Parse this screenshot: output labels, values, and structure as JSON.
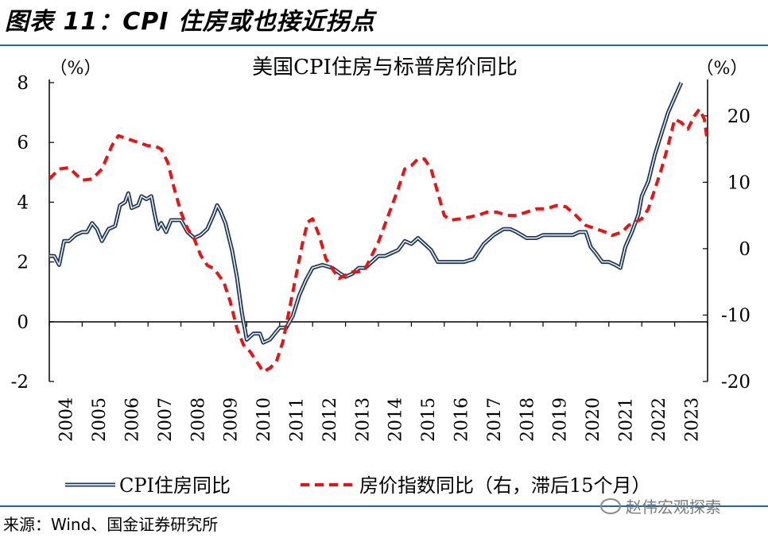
{
  "figure": {
    "label": "图表 11：CPI 住房或也接近拐点",
    "source": "来源：Wind、国金证券研究所",
    "watermark": "赵伟宏观探索"
  },
  "chart_data": {
    "type": "line",
    "title": "美国CPI住房与标普房价同比",
    "left_axis_unit": "（%）",
    "right_axis_unit": "（%）",
    "ylim_left": [
      -2,
      8
    ],
    "ylim_right": [
      -20,
      25
    ],
    "yticks_left": [
      "8",
      "6",
      "4",
      "2",
      "0",
      "-2"
    ],
    "yticks_right": [
      "20",
      "10",
      "0",
      "-10",
      "-20"
    ],
    "x_range": [
      2004,
      2024
    ],
    "x_labels": [
      "2004",
      "2005",
      "2006",
      "2007",
      "2008",
      "2009",
      "2010",
      "2011",
      "2012",
      "2013",
      "2014",
      "2015",
      "2016",
      "2017",
      "2018",
      "2019",
      "2020",
      "2021",
      "2022",
      "2023"
    ],
    "series": [
      {
        "name": "CPI住房同比",
        "axis": "left",
        "color": "#1f3a5f",
        "style": "double",
        "points": [
          [
            2004.0,
            2.2
          ],
          [
            2004.15,
            2.2
          ],
          [
            2004.3,
            1.9
          ],
          [
            2004.45,
            2.7
          ],
          [
            2004.6,
            2.7
          ],
          [
            2004.8,
            2.9
          ],
          [
            2005.0,
            3.0
          ],
          [
            2005.15,
            3.0
          ],
          [
            2005.3,
            3.3
          ],
          [
            2005.45,
            3.1
          ],
          [
            2005.6,
            2.7
          ],
          [
            2005.8,
            3.1
          ],
          [
            2006.0,
            3.2
          ],
          [
            2006.15,
            3.9
          ],
          [
            2006.3,
            4.0
          ],
          [
            2006.4,
            4.3
          ],
          [
            2006.5,
            3.8
          ],
          [
            2006.7,
            3.9
          ],
          [
            2006.8,
            4.2
          ],
          [
            2006.95,
            4.1
          ],
          [
            2007.1,
            4.2
          ],
          [
            2007.2,
            3.6
          ],
          [
            2007.3,
            3.1
          ],
          [
            2007.4,
            3.3
          ],
          [
            2007.55,
            3.0
          ],
          [
            2007.7,
            3.4
          ],
          [
            2008.0,
            3.4
          ],
          [
            2008.2,
            3.0
          ],
          [
            2008.4,
            2.8
          ],
          [
            2008.6,
            2.9
          ],
          [
            2008.8,
            3.1
          ],
          [
            2009.0,
            3.6
          ],
          [
            2009.1,
            3.9
          ],
          [
            2009.2,
            3.7
          ],
          [
            2009.35,
            3.3
          ],
          [
            2009.55,
            2.4
          ],
          [
            2009.7,
            1.5
          ],
          [
            2009.85,
            0.3
          ],
          [
            2010.0,
            -0.6
          ],
          [
            2010.2,
            -0.4
          ],
          [
            2010.4,
            -0.4
          ],
          [
            2010.5,
            -0.7
          ],
          [
            2010.7,
            -0.6
          ],
          [
            2010.85,
            -0.4
          ],
          [
            2011.0,
            -0.2
          ],
          [
            2011.2,
            -0.2
          ],
          [
            2011.4,
            0.2
          ],
          [
            2011.6,
            0.9
          ],
          [
            2011.8,
            1.4
          ],
          [
            2012.0,
            1.8
          ],
          [
            2012.3,
            1.9
          ],
          [
            2012.6,
            1.8
          ],
          [
            2012.85,
            1.6
          ],
          [
            2013.0,
            1.5
          ],
          [
            2013.2,
            1.6
          ],
          [
            2013.4,
            1.8
          ],
          [
            2013.6,
            1.8
          ],
          [
            2013.8,
            2.0
          ],
          [
            2014.0,
            2.2
          ],
          [
            2014.2,
            2.2
          ],
          [
            2014.4,
            2.3
          ],
          [
            2014.6,
            2.4
          ],
          [
            2014.8,
            2.7
          ],
          [
            2015.0,
            2.6
          ],
          [
            2015.2,
            2.8
          ],
          [
            2015.4,
            2.6
          ],
          [
            2015.6,
            2.4
          ],
          [
            2015.8,
            2.0
          ],
          [
            2016.0,
            2.0
          ],
          [
            2016.3,
            2.0
          ],
          [
            2016.6,
            2.0
          ],
          [
            2016.9,
            2.1
          ],
          [
            2017.2,
            2.6
          ],
          [
            2017.5,
            2.9
          ],
          [
            2017.8,
            3.1
          ],
          [
            2018.0,
            3.1
          ],
          [
            2018.2,
            3.0
          ],
          [
            2018.5,
            2.8
          ],
          [
            2018.8,
            2.8
          ],
          [
            2019.0,
            2.9
          ],
          [
            2019.3,
            2.9
          ],
          [
            2019.6,
            2.9
          ],
          [
            2019.9,
            2.9
          ],
          [
            2020.1,
            3.0
          ],
          [
            2020.3,
            3.0
          ],
          [
            2020.45,
            2.5
          ],
          [
            2020.6,
            2.3
          ],
          [
            2020.8,
            2.0
          ],
          [
            2021.0,
            2.0
          ],
          [
            2021.2,
            1.9
          ],
          [
            2021.35,
            1.8
          ],
          [
            2021.5,
            2.5
          ],
          [
            2021.7,
            3.0
          ],
          [
            2021.9,
            3.6
          ],
          [
            2022.0,
            4.2
          ],
          [
            2022.2,
            4.7
          ],
          [
            2022.4,
            5.6
          ],
          [
            2022.6,
            6.3
          ],
          [
            2022.8,
            7.0
          ],
          [
            2023.0,
            7.5
          ],
          [
            2023.2,
            8.0
          ]
        ]
      },
      {
        "name": "房价指数同比（右，滞后15个月）",
        "axis": "right",
        "color": "#ee1111",
        "style": "dashed",
        "points": [
          [
            2004.0,
            10.5
          ],
          [
            2004.3,
            12.0
          ],
          [
            2004.6,
            12.2
          ],
          [
            2005.0,
            10.3
          ],
          [
            2005.3,
            10.5
          ],
          [
            2005.6,
            12.0
          ],
          [
            2005.9,
            15.5
          ],
          [
            2006.1,
            17.0
          ],
          [
            2006.4,
            16.5
          ],
          [
            2006.7,
            16.0
          ],
          [
            2007.0,
            15.5
          ],
          [
            2007.2,
            15.5
          ],
          [
            2007.4,
            15.0
          ],
          [
            2007.6,
            13.0
          ],
          [
            2007.8,
            9.0
          ],
          [
            2008.0,
            5.5
          ],
          [
            2008.2,
            3.0
          ],
          [
            2008.4,
            1.5
          ],
          [
            2008.6,
            -1.0
          ],
          [
            2008.8,
            -2.5
          ],
          [
            2009.0,
            -3.0
          ],
          [
            2009.3,
            -5.0
          ],
          [
            2009.5,
            -8.0
          ],
          [
            2009.7,
            -12.0
          ],
          [
            2009.9,
            -14.5
          ],
          [
            2010.1,
            -15.5
          ],
          [
            2010.3,
            -17.0
          ],
          [
            2010.5,
            -18.5
          ],
          [
            2010.7,
            -18.0
          ],
          [
            2010.9,
            -17.0
          ],
          [
            2011.1,
            -14.0
          ],
          [
            2011.3,
            -9.0
          ],
          [
            2011.5,
            -4.0
          ],
          [
            2011.7,
            1.0
          ],
          [
            2011.85,
            4.0
          ],
          [
            2012.0,
            4.5
          ],
          [
            2012.2,
            2.0
          ],
          [
            2012.4,
            -1.5
          ],
          [
            2012.6,
            -3.0
          ],
          [
            2012.8,
            -4.5
          ],
          [
            2013.0,
            -4.0
          ],
          [
            2013.2,
            -3.5
          ],
          [
            2013.4,
            -3.5
          ],
          [
            2013.6,
            -3.0
          ],
          [
            2013.8,
            -1.0
          ],
          [
            2014.0,
            1.0
          ],
          [
            2014.3,
            5.0
          ],
          [
            2014.6,
            9.0
          ],
          [
            2014.8,
            12.0
          ],
          [
            2015.0,
            12.5
          ],
          [
            2015.2,
            13.5
          ],
          [
            2015.4,
            13.5
          ],
          [
            2015.6,
            12.0
          ],
          [
            2015.8,
            8.5
          ],
          [
            2016.0,
            5.0
          ],
          [
            2016.2,
            4.3
          ],
          [
            2016.5,
            4.5
          ],
          [
            2016.8,
            4.8
          ],
          [
            2017.0,
            5.0
          ],
          [
            2017.3,
            5.5
          ],
          [
            2017.6,
            5.5
          ],
          [
            2017.9,
            5.0
          ],
          [
            2018.2,
            5.0
          ],
          [
            2018.5,
            5.5
          ],
          [
            2018.8,
            6.0
          ],
          [
            2019.1,
            6.0
          ],
          [
            2019.4,
            6.5
          ],
          [
            2019.7,
            6.3
          ],
          [
            2020.0,
            5.0
          ],
          [
            2020.3,
            3.5
          ],
          [
            2020.6,
            3.0
          ],
          [
            2020.9,
            2.5
          ],
          [
            2021.1,
            2.0
          ],
          [
            2021.4,
            2.5
          ],
          [
            2021.6,
            3.5
          ],
          [
            2021.8,
            4.0
          ],
          [
            2022.0,
            4.5
          ],
          [
            2022.2,
            6.0
          ],
          [
            2022.4,
            9.0
          ],
          [
            2022.6,
            12.0
          ],
          [
            2022.8,
            15.5
          ],
          [
            2023.0,
            19.5
          ],
          [
            2023.2,
            19.0
          ],
          [
            2023.4,
            18.0
          ],
          [
            2023.6,
            20.0
          ],
          [
            2023.75,
            21.0
          ],
          [
            2023.9,
            19.5
          ],
          [
            2024.0,
            16.0
          ]
        ]
      }
    ]
  }
}
